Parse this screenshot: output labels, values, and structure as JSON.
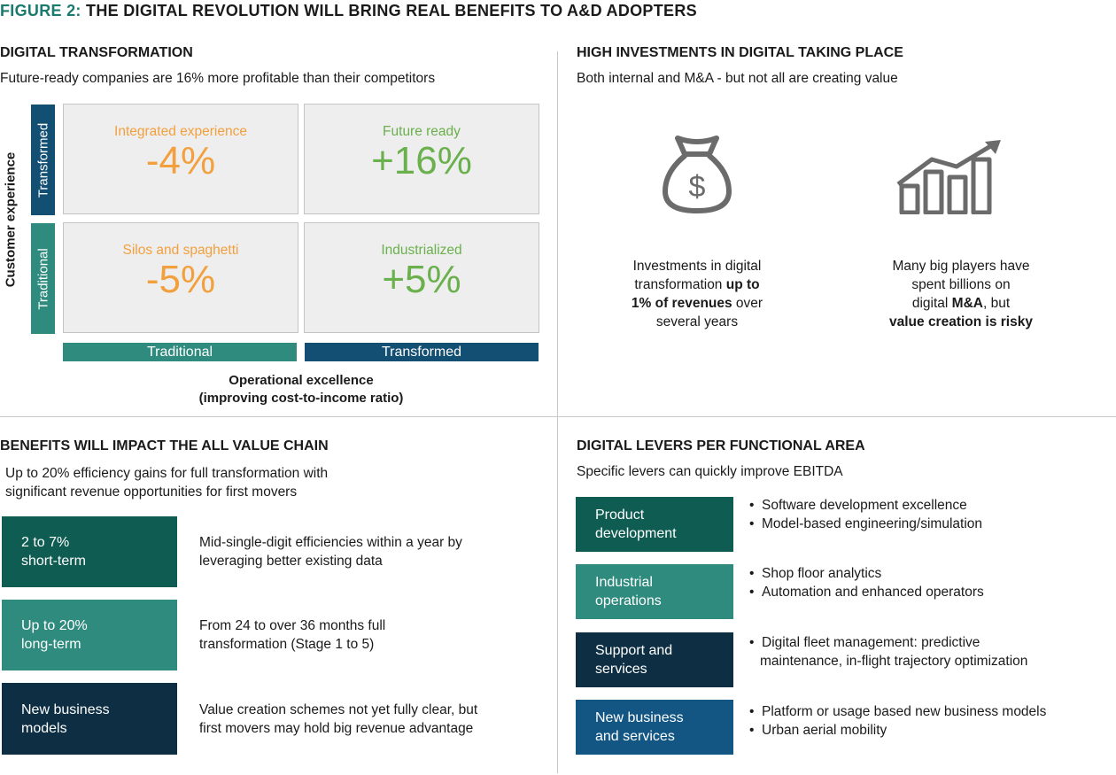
{
  "figure": {
    "label": "FIGURE 2:",
    "title": "THE DIGITAL REVOLUTION WILL BRING REAL BENEFITS TO A&D ADOPTERS"
  },
  "q1": {
    "title": "DIGITAL TRANSFORMATION",
    "subtitle": "Future-ready companies are 16% more profitable than their competitors",
    "y_axis": "Customer experience",
    "y_levels": [
      "Transformed",
      "Traditional"
    ],
    "x_levels": [
      "Traditional",
      "Transformed"
    ],
    "x_axis_line1": "Operational excellence",
    "x_axis_line2": "(improving cost-to-income ratio)",
    "cells": [
      {
        "name": "Integrated experience",
        "value": "-4%",
        "color": "#f2a03d"
      },
      {
        "name": "Future ready",
        "value": "+16%",
        "color": "#6ab04c"
      },
      {
        "name": "Silos and spaghetti",
        "value": "-5%",
        "color": "#f2a03d"
      },
      {
        "name": "Industrialized",
        "value": "+5%",
        "color": "#6ab04c"
      }
    ]
  },
  "q2": {
    "title": "HIGH INVESTMENTS IN DIGITAL TAKING PLACE",
    "subtitle": "Both internal and M&A - but not all are creating value",
    "left_icon": "money-bag-icon",
    "right_icon": "growth-chart-icon",
    "left": {
      "l1": "Investments in digital",
      "l2a": "transformation ",
      "l2b": "up to",
      "l3a": "1% of revenues",
      "l3b": " over",
      "l4": "several years"
    },
    "right": {
      "l1": "Many big players have",
      "l2": "spent billions on",
      "l3a": "digital ",
      "l3b": "M&A",
      "l3c": ", but",
      "l4": "value creation is risky"
    }
  },
  "q3": {
    "title": "BENEFITS WILL IMPACT THE ALL VALUE CHAIN",
    "subtitle_line1": "Up to 20% efficiency gains for full transformation with",
    "subtitle_line2": "significant revenue opportunities for first movers",
    "blocks": [
      {
        "l1": "2 to 7%",
        "l2": "short-term",
        "d1": "Mid-single-digit efficiencies within a year by",
        "d2": "leveraging better existing data",
        "color": "#0f5c52"
      },
      {
        "l1": "Up to 20%",
        "l2": "long-term",
        "d1": "From 24 to over 36 months full",
        "d2": "transformation (Stage 1 to 5)",
        "color": "#2e8b7e"
      },
      {
        "l1": "New business",
        "l2": "models",
        "d1": "Value creation schemes not yet fully clear, but",
        "d2": "first movers may hold big revenue advantage",
        "color": "#0e2f43"
      }
    ]
  },
  "q4": {
    "title": "DIGITAL LEVERS PER FUNCTIONAL AREA",
    "subtitle": "Specific levers can quickly improve EBITDA",
    "areas": [
      {
        "l1": "Product",
        "l2": "development",
        "items": [
          "Software development excellence",
          "Model-based engineering/simulation"
        ],
        "color": "#0f5c52"
      },
      {
        "l1": "Industrial",
        "l2": "operations",
        "items": [
          "Shop floor analytics",
          "Automation and enhanced operators"
        ],
        "color": "#2e8b7e"
      },
      {
        "l1": "Support and",
        "l2": "services",
        "items": [
          "Digital fleet management: predictive",
          "maintenance, in-flight trajectory optimization"
        ],
        "color": "#0e2f43"
      },
      {
        "l1": "New business",
        "l2": "and services",
        "items": [
          "Platform or usage based new business models",
          "Urban aerial mobility"
        ],
        "color": "#135684"
      }
    ]
  }
}
